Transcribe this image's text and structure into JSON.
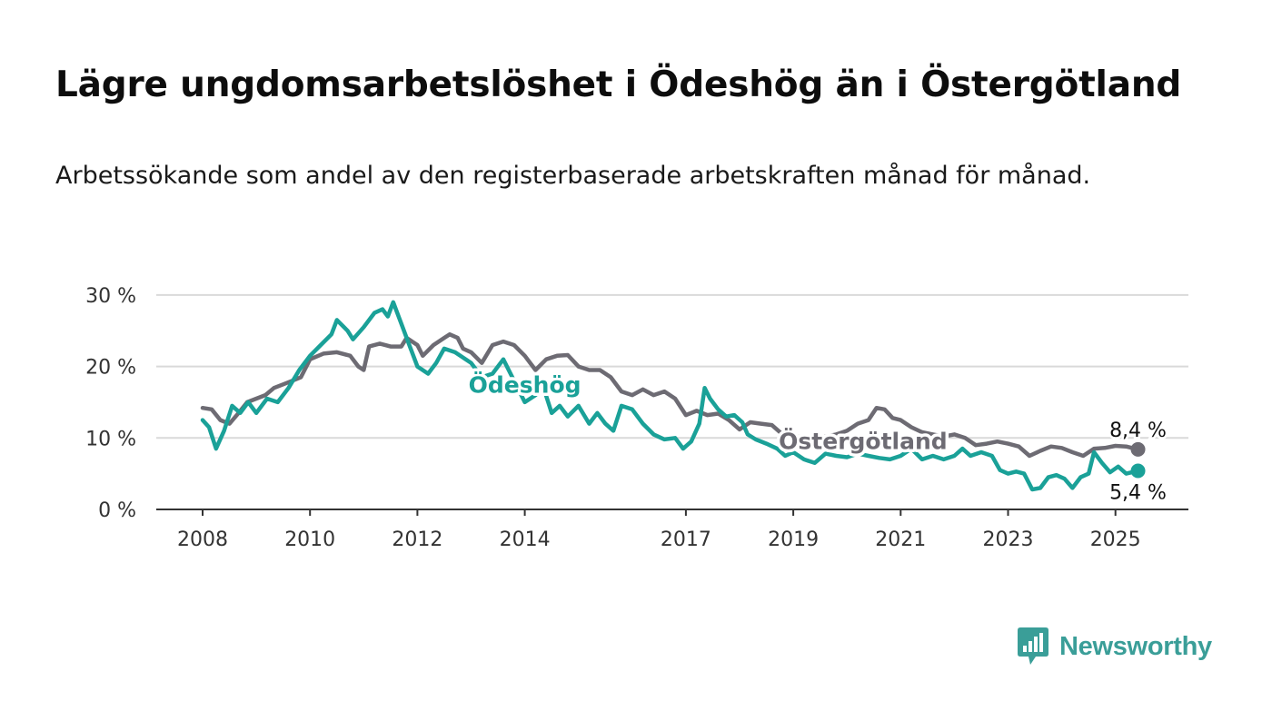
{
  "title": "Lägre ungdomsarbetslöshet i Ödeshög än i Östergötland",
  "subtitle": "Arbetssökande som andel av den registerbaserade arbetskraften månad för månad.",
  "brand": {
    "name": "Newsworthy",
    "icon": "newsworthy-chat-bars-icon"
  },
  "colors": {
    "odeshog": "#1aa198",
    "ostergotland": "#6d6b73",
    "grid": "#d9d9d9",
    "axis": "#333333"
  },
  "chart_data": {
    "type": "line",
    "x_unit": "year (decimal)",
    "xlim": [
      2008,
      2025.5
    ],
    "ylim": [
      0,
      30
    ],
    "y_ticks": [
      0,
      10,
      20,
      30
    ],
    "y_tick_labels": [
      "0 %",
      "10 %",
      "20 %",
      "30 %"
    ],
    "x_ticks": [
      2008,
      2010,
      2012,
      2014,
      2017,
      2019,
      2021,
      2023,
      2025
    ],
    "x_tick_labels": [
      "2008",
      "2010",
      "2012",
      "2014",
      "2017",
      "2019",
      "2021",
      "2023",
      "2025"
    ],
    "grid": "horizontal",
    "series": [
      {
        "name": "Östergötland",
        "end_label": "8,4 %",
        "points": [
          [
            2008.0,
            14.2
          ],
          [
            2008.17,
            14.0
          ],
          [
            2008.33,
            12.5
          ],
          [
            2008.5,
            12.0
          ],
          [
            2008.67,
            13.5
          ],
          [
            2008.83,
            15.0
          ],
          [
            2009.0,
            15.5
          ],
          [
            2009.17,
            16.0
          ],
          [
            2009.33,
            17.0
          ],
          [
            2009.5,
            17.5
          ],
          [
            2009.67,
            18.0
          ],
          [
            2009.83,
            18.5
          ],
          [
            2010.0,
            21.0
          ],
          [
            2010.25,
            21.8
          ],
          [
            2010.5,
            22.0
          ],
          [
            2010.75,
            21.5
          ],
          [
            2010.9,
            20.0
          ],
          [
            2011.0,
            19.5
          ],
          [
            2011.1,
            22.8
          ],
          [
            2011.3,
            23.2
          ],
          [
            2011.5,
            22.8
          ],
          [
            2011.7,
            22.8
          ],
          [
            2011.8,
            24.0
          ],
          [
            2012.0,
            23.0
          ],
          [
            2012.1,
            21.5
          ],
          [
            2012.3,
            23.0
          ],
          [
            2012.5,
            24.0
          ],
          [
            2012.6,
            24.5
          ],
          [
            2012.75,
            24.0
          ],
          [
            2012.85,
            22.5
          ],
          [
            2013.0,
            22.0
          ],
          [
            2013.2,
            20.5
          ],
          [
            2013.4,
            23.0
          ],
          [
            2013.6,
            23.5
          ],
          [
            2013.8,
            23.0
          ],
          [
            2014.0,
            21.5
          ],
          [
            2014.2,
            19.5
          ],
          [
            2014.4,
            21.0
          ],
          [
            2014.6,
            21.5
          ],
          [
            2014.8,
            21.6
          ],
          [
            2015.0,
            20.0
          ],
          [
            2015.2,
            19.5
          ],
          [
            2015.4,
            19.5
          ],
          [
            2015.6,
            18.5
          ],
          [
            2015.8,
            16.5
          ],
          [
            2016.0,
            16.0
          ],
          [
            2016.2,
            16.8
          ],
          [
            2016.4,
            16.0
          ],
          [
            2016.6,
            16.5
          ],
          [
            2016.8,
            15.5
          ],
          [
            2017.0,
            13.2
          ],
          [
            2017.2,
            13.8
          ],
          [
            2017.4,
            13.2
          ],
          [
            2017.6,
            13.4
          ],
          [
            2017.8,
            12.5
          ],
          [
            2018.0,
            11.2
          ],
          [
            2018.2,
            12.2
          ],
          [
            2018.4,
            12.0
          ],
          [
            2018.6,
            11.8
          ],
          [
            2018.8,
            10.5
          ],
          [
            2019.0,
            10.5
          ],
          [
            2019.2,
            9.8
          ],
          [
            2019.4,
            10.0
          ],
          [
            2019.6,
            10.2
          ],
          [
            2019.8,
            10.5
          ],
          [
            2020.0,
            11.0
          ],
          [
            2020.2,
            12.0
          ],
          [
            2020.4,
            12.5
          ],
          [
            2020.55,
            14.2
          ],
          [
            2020.7,
            14.0
          ],
          [
            2020.85,
            12.8
          ],
          [
            2021.0,
            12.5
          ],
          [
            2021.2,
            11.5
          ],
          [
            2021.4,
            10.8
          ],
          [
            2021.6,
            10.5
          ],
          [
            2021.8,
            10.2
          ],
          [
            2022.0,
            10.5
          ],
          [
            2022.2,
            10.0
          ],
          [
            2022.4,
            9.0
          ],
          [
            2022.6,
            9.2
          ],
          [
            2022.8,
            9.5
          ],
          [
            2023.0,
            9.2
          ],
          [
            2023.2,
            8.8
          ],
          [
            2023.4,
            7.5
          ],
          [
            2023.6,
            8.2
          ],
          [
            2023.8,
            8.8
          ],
          [
            2024.0,
            8.6
          ],
          [
            2024.2,
            8.0
          ],
          [
            2024.4,
            7.5
          ],
          [
            2024.6,
            8.5
          ],
          [
            2024.8,
            8.6
          ],
          [
            2025.0,
            8.9
          ],
          [
            2025.2,
            8.8
          ],
          [
            2025.42,
            8.4
          ]
        ]
      },
      {
        "name": "Ödeshög",
        "end_label": "5,4 %",
        "points": [
          [
            2008.0,
            12.5
          ],
          [
            2008.12,
            11.5
          ],
          [
            2008.25,
            8.5
          ],
          [
            2008.4,
            11.0
          ],
          [
            2008.55,
            14.5
          ],
          [
            2008.7,
            13.5
          ],
          [
            2008.85,
            15.0
          ],
          [
            2009.0,
            13.5
          ],
          [
            2009.2,
            15.5
          ],
          [
            2009.4,
            15.0
          ],
          [
            2009.6,
            17.0
          ],
          [
            2009.8,
            19.5
          ],
          [
            2010.0,
            21.5
          ],
          [
            2010.2,
            23.0
          ],
          [
            2010.4,
            24.5
          ],
          [
            2010.5,
            26.5
          ],
          [
            2010.7,
            25.0
          ],
          [
            2010.8,
            23.8
          ],
          [
            2011.0,
            25.5
          ],
          [
            2011.2,
            27.5
          ],
          [
            2011.35,
            28.0
          ],
          [
            2011.45,
            27.0
          ],
          [
            2011.55,
            29.0
          ],
          [
            2011.7,
            26.0
          ],
          [
            2011.85,
            23.0
          ],
          [
            2012.0,
            20.0
          ],
          [
            2012.2,
            19.0
          ],
          [
            2012.35,
            20.5
          ],
          [
            2012.5,
            22.5
          ],
          [
            2012.7,
            22.0
          ],
          [
            2012.9,
            21.0
          ],
          [
            2013.0,
            20.5
          ],
          [
            2013.2,
            18.5
          ],
          [
            2013.4,
            19.0
          ],
          [
            2013.6,
            21.0
          ],
          [
            2013.8,
            18.0
          ],
          [
            2013.9,
            16.5
          ],
          [
            2014.0,
            15.0
          ],
          [
            2014.2,
            16.0
          ],
          [
            2014.35,
            17.0
          ],
          [
            2014.5,
            13.5
          ],
          [
            2014.65,
            14.5
          ],
          [
            2014.8,
            13.0
          ],
          [
            2015.0,
            14.5
          ],
          [
            2015.2,
            12.0
          ],
          [
            2015.35,
            13.5
          ],
          [
            2015.5,
            12.0
          ],
          [
            2015.65,
            11.0
          ],
          [
            2015.8,
            14.5
          ],
          [
            2016.0,
            14.0
          ],
          [
            2016.2,
            12.0
          ],
          [
            2016.4,
            10.5
          ],
          [
            2016.6,
            9.8
          ],
          [
            2016.8,
            10.0
          ],
          [
            2016.95,
            8.5
          ],
          [
            2017.1,
            9.5
          ],
          [
            2017.25,
            12.0
          ],
          [
            2017.35,
            17.0
          ],
          [
            2017.45,
            15.5
          ],
          [
            2017.6,
            14.0
          ],
          [
            2017.75,
            13.0
          ],
          [
            2017.9,
            13.2
          ],
          [
            2018.05,
            12.2
          ],
          [
            2018.15,
            10.5
          ],
          [
            2018.3,
            9.8
          ],
          [
            2018.5,
            9.2
          ],
          [
            2018.7,
            8.5
          ],
          [
            2018.85,
            7.5
          ],
          [
            2019.0,
            8.0
          ],
          [
            2019.2,
            7.0
          ],
          [
            2019.4,
            6.5
          ],
          [
            2019.6,
            7.8
          ],
          [
            2019.8,
            7.5
          ],
          [
            2020.0,
            7.3
          ],
          [
            2020.2,
            7.8
          ],
          [
            2020.4,
            7.5
          ],
          [
            2020.6,
            7.2
          ],
          [
            2020.8,
            7.0
          ],
          [
            2021.0,
            7.5
          ],
          [
            2021.2,
            8.5
          ],
          [
            2021.4,
            7.0
          ],
          [
            2021.6,
            7.5
          ],
          [
            2021.8,
            7.0
          ],
          [
            2022.0,
            7.5
          ],
          [
            2022.15,
            8.5
          ],
          [
            2022.3,
            7.5
          ],
          [
            2022.5,
            8.0
          ],
          [
            2022.7,
            7.5
          ],
          [
            2022.85,
            5.5
          ],
          [
            2023.0,
            5.0
          ],
          [
            2023.15,
            5.3
          ],
          [
            2023.3,
            5.0
          ],
          [
            2023.45,
            2.8
          ],
          [
            2023.6,
            3.0
          ],
          [
            2023.75,
            4.5
          ],
          [
            2023.9,
            4.8
          ],
          [
            2024.05,
            4.3
          ],
          [
            2024.2,
            3.0
          ],
          [
            2024.35,
            4.5
          ],
          [
            2024.5,
            5.0
          ],
          [
            2024.6,
            8.0
          ],
          [
            2024.75,
            6.5
          ],
          [
            2024.9,
            5.2
          ],
          [
            2025.05,
            6.0
          ],
          [
            2025.2,
            5.0
          ],
          [
            2025.42,
            5.4
          ]
        ]
      }
    ],
    "annotations": [
      {
        "series": "Ödeshög",
        "text": "Ödeshög",
        "x": 2014.0,
        "y": 17.5
      },
      {
        "series": "Östergötland",
        "text": "Östergötland",
        "x": 2020.3,
        "y": 9.6
      }
    ]
  }
}
